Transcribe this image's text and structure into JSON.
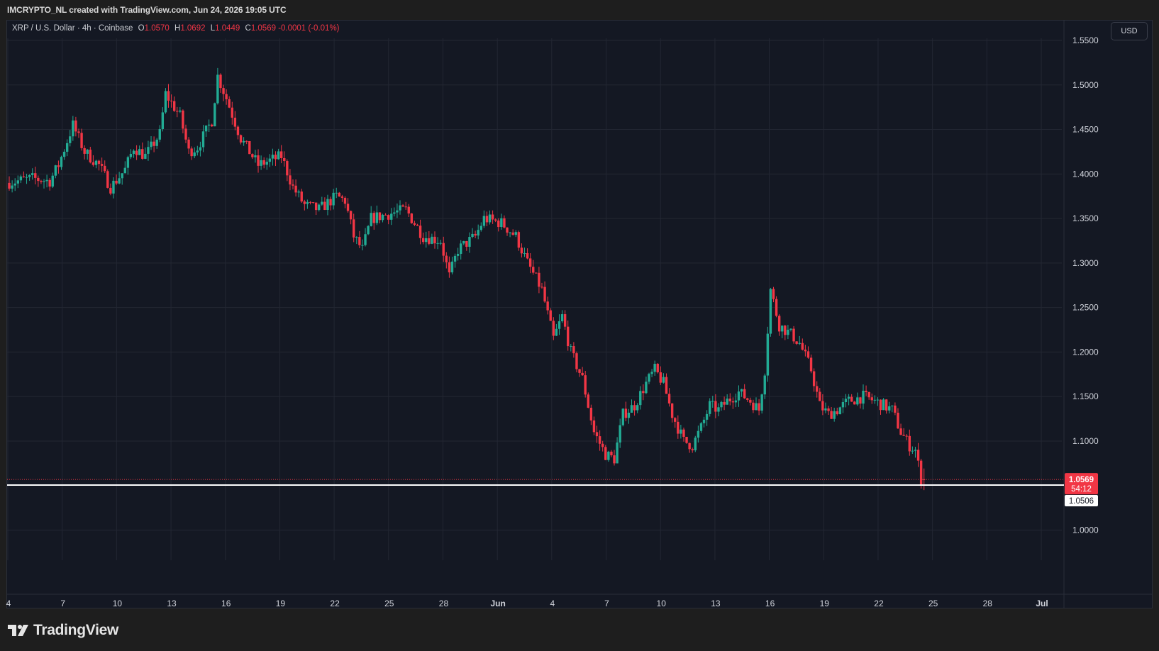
{
  "header": {
    "credit": "IMCRYPTO_NL created with TradingView.com, Jun 24, 2026 19:05 UTC"
  },
  "legend": {
    "symbol": "XRP / U.S. Dollar · 4h · Coinbase",
    "open_label": "O",
    "open": "1.0570",
    "high_label": "H",
    "high": "1.0692",
    "low_label": "L",
    "low": "1.0449",
    "close_label": "C",
    "close": "1.0569",
    "change": "-0.0001 (-0.01%)"
  },
  "currency_button": "USD",
  "brand": {
    "name": "TradingView",
    "icon": "tradingview-logo-icon"
  },
  "colors": {
    "up": "#22ab94",
    "down": "#f23645",
    "background": "#141823",
    "grid": "#232733",
    "axis_text": "#d1d4dc"
  },
  "chart_data": {
    "type": "candlestick",
    "interval": "4h",
    "y_axis": {
      "ticks": [
        "1.0000",
        "1.1000",
        "1.1500",
        "1.2000",
        "1.2500",
        "1.3000",
        "1.3500",
        "1.4000",
        "1.4500",
        "1.5000",
        "1.5500"
      ],
      "range": [
        0.965,
        1.555
      ],
      "position": "right"
    },
    "x_axis": {
      "ticks": [
        "4",
        "7",
        "10",
        "13",
        "16",
        "19",
        "22",
        "25",
        "28",
        "Jun",
        "4",
        "7",
        "10",
        "13",
        "16",
        "19",
        "22",
        "25",
        "28",
        "Jul"
      ],
      "start": "2026-05-03T00:00",
      "end": "2026-07-01T12:00"
    },
    "grid": true,
    "last_price": {
      "value": "1.0569",
      "countdown": "54:12"
    },
    "support_line": {
      "value": "1.0506"
    },
    "price_path": [
      [
        "2026-05-03T00:00",
        1.39
      ],
      [
        "2026-05-04T12:00",
        1.395
      ],
      [
        "2026-05-05T12:00",
        1.392
      ],
      [
        "2026-05-06T00:00",
        1.41
      ],
      [
        "2026-05-06T20:00",
        1.455
      ],
      [
        "2026-05-07T12:00",
        1.425
      ],
      [
        "2026-05-08T08:00",
        1.41
      ],
      [
        "2026-05-09T00:00",
        1.385
      ],
      [
        "2026-05-09T20:00",
        1.405
      ],
      [
        "2026-05-10T08:00",
        1.43
      ],
      [
        "2026-05-11T00:00",
        1.42
      ],
      [
        "2026-05-11T20:00",
        1.445
      ],
      [
        "2026-05-12T04:00",
        1.49
      ],
      [
        "2026-05-13T00:00",
        1.465
      ],
      [
        "2026-05-13T12:00",
        1.425
      ],
      [
        "2026-05-14T00:00",
        1.43
      ],
      [
        "2026-05-14T20:00",
        1.46
      ],
      [
        "2026-05-15T04:00",
        1.51
      ],
      [
        "2026-05-15T16:00",
        1.485
      ],
      [
        "2026-05-16T12:00",
        1.44
      ],
      [
        "2026-05-17T12:00",
        1.41
      ],
      [
        "2026-05-18T04:00",
        1.415
      ],
      [
        "2026-05-18T20:00",
        1.42
      ],
      [
        "2026-05-19T12:00",
        1.385
      ],
      [
        "2026-05-20T04:00",
        1.365
      ],
      [
        "2026-05-21T00:00",
        1.36
      ],
      [
        "2026-05-22T00:00",
        1.375
      ],
      [
        "2026-05-22T12:00",
        1.37
      ],
      [
        "2026-05-23T00:00",
        1.33
      ],
      [
        "2026-05-23T12:00",
        1.315
      ],
      [
        "2026-05-24T00:00",
        1.35
      ],
      [
        "2026-05-25T00:00",
        1.355
      ],
      [
        "2026-05-26T00:00",
        1.36
      ],
      [
        "2026-05-27T00:00",
        1.33
      ],
      [
        "2026-05-28T00:00",
        1.325
      ],
      [
        "2026-05-28T12:00",
        1.285
      ],
      [
        "2026-05-29T00:00",
        1.315
      ],
      [
        "2026-05-30T00:00",
        1.33
      ],
      [
        "2026-05-30T12:00",
        1.35
      ],
      [
        "2026-05-31T12:00",
        1.345
      ],
      [
        "2026-06-01T08:00",
        1.33
      ],
      [
        "2026-06-02T00:00",
        1.3
      ],
      [
        "2026-06-02T20:00",
        1.27
      ],
      [
        "2026-06-03T12:00",
        1.215
      ],
      [
        "2026-06-04T00:00",
        1.24
      ],
      [
        "2026-06-04T12:00",
        1.2
      ],
      [
        "2026-06-05T04:00",
        1.17
      ],
      [
        "2026-06-05T20:00",
        1.11
      ],
      [
        "2026-06-06T12:00",
        1.085
      ],
      [
        "2026-06-07T00:00",
        1.08
      ],
      [
        "2026-06-07T12:00",
        1.13
      ],
      [
        "2026-06-08T04:00",
        1.14
      ],
      [
        "2026-06-08T20:00",
        1.165
      ],
      [
        "2026-06-09T08:00",
        1.18
      ],
      [
        "2026-06-09T20:00",
        1.165
      ],
      [
        "2026-06-10T08:00",
        1.13
      ],
      [
        "2026-06-11T00:00",
        1.1
      ],
      [
        "2026-06-11T12:00",
        1.095
      ],
      [
        "2026-06-12T00:00",
        1.115
      ],
      [
        "2026-06-12T12:00",
        1.14
      ],
      [
        "2026-06-13T00:00",
        1.135
      ],
      [
        "2026-06-13T12:00",
        1.145
      ],
      [
        "2026-06-14T04:00",
        1.155
      ],
      [
        "2026-06-14T20:00",
        1.145
      ],
      [
        "2026-06-15T08:00",
        1.135
      ],
      [
        "2026-06-15T16:00",
        1.18
      ],
      [
        "2026-06-16T00:00",
        1.27
      ],
      [
        "2026-06-16T12:00",
        1.23
      ],
      [
        "2026-06-17T04:00",
        1.22
      ],
      [
        "2026-06-17T16:00",
        1.21
      ],
      [
        "2026-06-18T08:00",
        1.18
      ],
      [
        "2026-06-18T20:00",
        1.14
      ],
      [
        "2026-06-19T08:00",
        1.13
      ],
      [
        "2026-06-19T20:00",
        1.135
      ],
      [
        "2026-06-20T12:00",
        1.145
      ],
      [
        "2026-06-21T08:00",
        1.15
      ],
      [
        "2026-06-22T00:00",
        1.145
      ],
      [
        "2026-06-22T12:00",
        1.14
      ],
      [
        "2026-06-23T00:00",
        1.135
      ],
      [
        "2026-06-23T12:00",
        1.11
      ],
      [
        "2026-06-24T00:00",
        1.095
      ],
      [
        "2026-06-24T08:00",
        1.09
      ],
      [
        "2026-06-24T16:00",
        1.057
      ]
    ],
    "last_candle": {
      "open": 1.057,
      "high": 1.0692,
      "low": 1.0449,
      "close": 1.0569
    }
  }
}
